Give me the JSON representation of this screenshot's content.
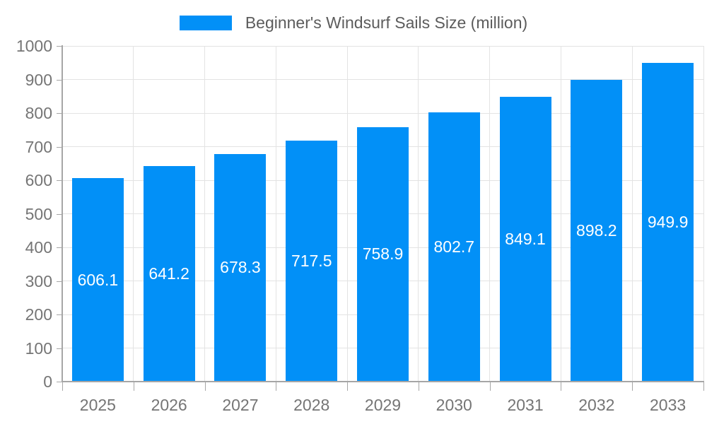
{
  "chart_data": {
    "type": "bar",
    "title": "Beginner's Windsurf Sails Size (million)",
    "legend": [
      "Beginner's Windsurf Sails Size (million)"
    ],
    "legend_position": "top",
    "categories": [
      "2025",
      "2026",
      "2027",
      "2028",
      "2029",
      "2030",
      "2031",
      "2032",
      "2033"
    ],
    "values": [
      606.1,
      641.2,
      678.3,
      717.5,
      758.9,
      802.7,
      849.1,
      898.2,
      949.9
    ],
    "value_labels": [
      "606.1",
      "641.2",
      "678.3",
      "717.5",
      "758.9",
      "802.7",
      "849.1",
      "898.2",
      "949.9"
    ],
    "xlabel": "",
    "ylabel": "",
    "ylim": [
      0,
      1000
    ],
    "yticks": [
      0,
      100,
      200,
      300,
      400,
      500,
      600,
      700,
      800,
      900,
      1000
    ],
    "grid": true,
    "colors": {
      "bar": "#0290f7",
      "bar_value_text": "#ffffff",
      "grid_line": "#e3e3e3",
      "axis_line": "#a6a6a6",
      "tick_text": "#757575",
      "title_text": "#5c5c5c",
      "background": "#ffffff"
    }
  }
}
